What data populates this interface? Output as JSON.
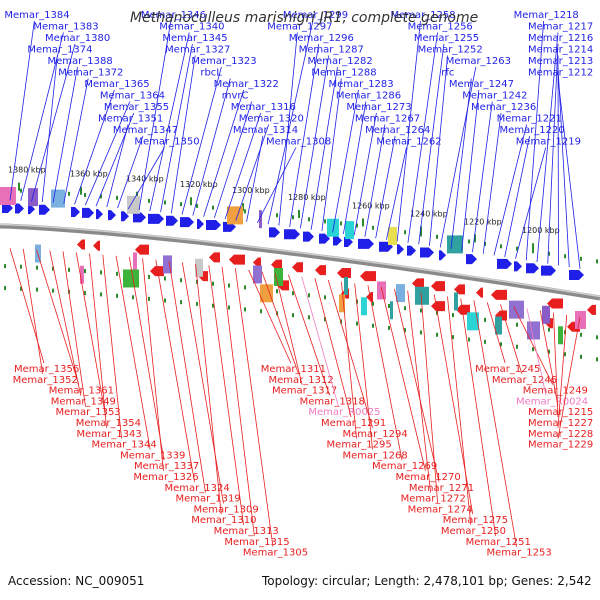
{
  "title": "Methanoculleus marisnigri JR1, complete genome",
  "footer": {
    "accession": "Accession: NC_009051",
    "summary": "Topology: circular; Length: 2,478,101 bp; Genes: 2,542"
  },
  "colors": {
    "forward_gene": "#1f1fe8",
    "reverse_gene": "#e81f1f",
    "rna_gene": "#f07ac0",
    "backbone": "#8a8a8a",
    "tick": "#2c8a2c"
  },
  "ruler": [
    "1380 kbp",
    "1360 kbp",
    "1340 kbp",
    "1320 kbp",
    "1300 kbp",
    "1280 kbp",
    "1260 kbp",
    "1240 kbp",
    "1220 kbp",
    "1200 kbp"
  ],
  "top_labels": [
    "Memar_1384",
    "Memar_1383",
    "Memar_1380",
    "Memar_1374",
    "Memar_1388",
    "Memar_1372",
    "Memar_1365",
    "Memar_1364",
    "Memar_1355",
    "Memar_1351",
    "Memar_1347",
    "Memar_1350",
    "Memar_1346",
    "Memar_1340",
    "Memar_1345",
    "Memar_1327",
    "Memar_1323",
    "rbcL",
    "Memar_1322",
    "mvrC",
    "Memar_1316",
    "Memar_1320",
    "Memar_1314",
    "Memar_1308",
    "Memar_1299",
    "Memar_1297",
    "Memar_1296",
    "Memar_1287",
    "Memar_1282",
    "Memar_1288",
    "Memar_1283",
    "Memar_1286",
    "Memar_1273",
    "Memar_1267",
    "Memar_1264",
    "Memar_1262",
    "Memar_1258",
    "Memar_1256",
    "Memar_1255",
    "Memar_1252",
    "Memar_1263",
    "rfc",
    "Memar_1247",
    "Memar_1242",
    "Memar_1236",
    "Memar_1221",
    "Memar_1220",
    "Memar_1219",
    "Memar_1218",
    "Memar_1217",
    "Memar_1216",
    "Memar_1214",
    "Memar_1213",
    "Memar_1212"
  ],
  "bottom_labels": [
    "Memar_1356",
    "Memar_1352",
    "Memar_1361",
    "Memar_1349",
    "Memar_1353",
    "Memar_1354",
    "Memar_1343",
    "Memar_1344",
    "Memar_1339",
    "Memar_1337",
    "Memar_1326",
    "Memar_1324",
    "Memar_1319",
    "Memar_1309",
    "Memar_1310",
    "Memar_1313",
    "Memar_1315",
    "Memar_1305",
    "Memar_1311",
    "Memar_1312",
    "Memar_1317",
    "Memar_1318",
    "Memar_R0025",
    "Memar_1291",
    "Memar_1294",
    "Memar_1295",
    "Memar_1268",
    "Memar_1269",
    "Memar_1270",
    "Memar_1271",
    "Memar_1272",
    "Memar_1274",
    "Memar_1275",
    "Memar_1250",
    "Memar_1251",
    "Memar_1253",
    "Memar_1245",
    "Memar_1246",
    "Memar_1249",
    "Memar_R0024",
    "Memar_1215",
    "Memar_1227",
    "Memar_1228",
    "Memar_1229"
  ]
}
